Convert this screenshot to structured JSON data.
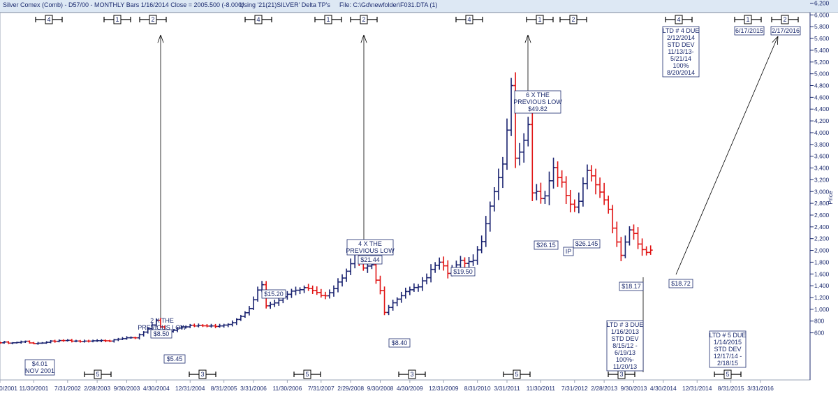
{
  "header": {
    "title": "Silver Comex (Comb) - D57/00  - MONTHLY Bars  1/16/2014 Close = 2005.500 (-8.000)",
    "using": "Using '21(21)SILVER' Delta TP's",
    "file": "File: C:\\Gd\\newfolder\\F031.DTA (1)"
  },
  "colors": {
    "up": "#1a2370",
    "down": "#e01414",
    "text": "#1b2a6e",
    "grid": "#9aa3b5"
  },
  "chart_data": {
    "type": "line",
    "ylabel": "Price",
    "ylim": [
      300,
      6400
    ],
    "y_ticks": [
      600,
      800,
      1000,
      1200,
      1400,
      1600,
      1800,
      2000,
      2200,
      2400,
      2600,
      2800,
      3000,
      3200,
      3400,
      3600,
      3800,
      4000,
      4200,
      4400,
      4600,
      4800,
      5000,
      5200,
      5400,
      5600,
      5800,
      6000,
      6200
    ],
    "y_tick_labels": [
      "600",
      "800",
      "1,000",
      "1,200",
      "1,400",
      "1,600",
      "1,800",
      "2,000",
      "2,200",
      "2,400",
      "2,600",
      "2,800",
      "3,000",
      "3,200",
      "3,400",
      "3,600",
      "3,800",
      "4,000",
      "4,200",
      "4,400",
      "4,600",
      "4,800",
      "5,000",
      "5,200",
      "5,400",
      "5,600",
      "5,800",
      "6,000",
      "6,200"
    ],
    "x_ticks": [
      "3/30/2001",
      "11/30/2001",
      "7/31/2002",
      "2/28/2003",
      "9/30/2003",
      "4/30/2004",
      "12/31/2004",
      "8/31/2005",
      "3/31/2006",
      "11/30/2006",
      "7/31/2007",
      "2/29/2008",
      "9/30/2008",
      "4/30/2009",
      "12/31/2009",
      "8/31/2010",
      "3/31/2011",
      "11/30/2011",
      "7/31/2012",
      "2/28/2013",
      "9/30/2013",
      "4/30/2014",
      "12/31/2014",
      "8/31/2015",
      "3/31/2016"
    ],
    "x_tick_labels": [
      "0/2001",
      "11/30/2001",
      "7/31/2002",
      "2/28/2003",
      "9/30/2003",
      "4/30/2004",
      "12/31/2004",
      "8/31/2005",
      "3/31/2006",
      "11/30/2006",
      "7/31/2007",
      "2/29/2008",
      "9/30/2008",
      "4/30/2009",
      "12/31/2009",
      "8/31/2010",
      "3/31/2011",
      "11/30/2011",
      "7/31/2012",
      "2/28/2013",
      "9/30/2013",
      "4/30/2014",
      "12/31/2014",
      "8/31/2015",
      "3/31/2016"
    ],
    "series": [
      {
        "values": [
          {
            "x": "2001-03",
            "y": 440
          },
          {
            "x": "2001-06",
            "y": 430
          },
          {
            "x": "2001-09",
            "y": 455
          },
          {
            "x": "2001-11",
            "y": 415
          },
          {
            "x": "2002-02",
            "y": 445
          },
          {
            "x": "2002-05",
            "y": 475
          },
          {
            "x": "2002-08",
            "y": 460
          },
          {
            "x": "2002-11",
            "y": 455
          },
          {
            "x": "2003-02",
            "y": 465
          },
          {
            "x": "2003-05",
            "y": 460
          },
          {
            "x": "2003-08",
            "y": 500
          },
          {
            "x": "2003-11",
            "y": 520
          },
          {
            "x": "2004-01",
            "y": 620
          },
          {
            "x": "2004-03",
            "y": 720
          },
          {
            "x": "2004-04",
            "y": 800
          },
          {
            "x": "2004-06",
            "y": 600
          },
          {
            "x": "2004-09",
            "y": 680
          },
          {
            "x": "2004-12",
            "y": 720
          },
          {
            "x": "2005-03",
            "y": 730
          },
          {
            "x": "2005-06",
            "y": 720
          },
          {
            "x": "2005-09",
            "y": 740
          },
          {
            "x": "2005-12",
            "y": 870
          },
          {
            "x": "2006-02",
            "y": 1000
          },
          {
            "x": "2006-04",
            "y": 1350
          },
          {
            "x": "2006-05",
            "y": 1400
          },
          {
            "x": "2006-06",
            "y": 1080
          },
          {
            "x": "2006-09",
            "y": 1150
          },
          {
            "x": "2006-12",
            "y": 1300
          },
          {
            "x": "2007-03",
            "y": 1350
          },
          {
            "x": "2007-06",
            "y": 1280
          },
          {
            "x": "2007-08",
            "y": 1220
          },
          {
            "x": "2007-11",
            "y": 1450
          },
          {
            "x": "2008-01",
            "y": 1620
          },
          {
            "x": "2008-03",
            "y": 1900
          },
          {
            "x": "2008-05",
            "y": 1700
          },
          {
            "x": "2008-07",
            "y": 1750
          },
          {
            "x": "2008-09",
            "y": 1300
          },
          {
            "x": "2008-10",
            "y": 960
          },
          {
            "x": "2008-12",
            "y": 1100
          },
          {
            "x": "2009-03",
            "y": 1280
          },
          {
            "x": "2009-06",
            "y": 1380
          },
          {
            "x": "2009-09",
            "y": 1650
          },
          {
            "x": "2009-11",
            "y": 1800
          },
          {
            "x": "2010-01",
            "y": 1620
          },
          {
            "x": "2010-04",
            "y": 1800
          },
          {
            "x": "2010-07",
            "y": 1800
          },
          {
            "x": "2010-09",
            "y": 2150
          },
          {
            "x": "2010-12",
            "y": 3050
          },
          {
            "x": "2011-02",
            "y": 3400
          },
          {
            "x": "2011-04",
            "y": 4750
          },
          {
            "x": "2011-05",
            "y": 3500
          },
          {
            "x": "2011-07",
            "y": 3950
          },
          {
            "x": "2011-08",
            "y": 4100
          },
          {
            "x": "2011-09",
            "y": 3000
          },
          {
            "x": "2011-12",
            "y": 2900
          },
          {
            "x": "2012-02",
            "y": 3450
          },
          {
            "x": "2012-04",
            "y": 3100
          },
          {
            "x": "2012-06",
            "y": 2750
          },
          {
            "x": "2012-08",
            "y": 2800
          },
          {
            "x": "2012-10",
            "y": 3400
          },
          {
            "x": "2012-12",
            "y": 3150
          },
          {
            "x": "2013-02",
            "y": 2900
          },
          {
            "x": "2013-04",
            "y": 2400
          },
          {
            "x": "2013-06",
            "y": 1950
          },
          {
            "x": "2013-08",
            "y": 2350
          },
          {
            "x": "2013-10",
            "y": 2150
          },
          {
            "x": "2013-12",
            "y": 1950
          },
          {
            "x": "2014-01",
            "y": 2005
          }
        ]
      }
    ],
    "annotations": [
      {
        "text": "$4.01",
        "x": "2001-11",
        "y": 415
      },
      {
        "text": "NOV 2001",
        "x": "2001-11",
        "y": 415
      },
      {
        "text": "2 X THE",
        "x": "2004-04",
        "y": 800
      },
      {
        "text": "PREVIOUS LOW",
        "x": "2004-04",
        "y": 800
      },
      {
        "text": "$8.50",
        "x": "2004-04",
        "y": 800
      },
      {
        "text": "$5.45",
        "x": "2004-06",
        "y": 600
      },
      {
        "text": "$15.20",
        "x": "2006-05",
        "y": 1400
      },
      {
        "text": "4 X  THE",
        "x": "2008-03",
        "y": 1900
      },
      {
        "text": "PREVIOUS LOW",
        "x": "2008-03",
        "y": 1900
      },
      {
        "text": "$21.44",
        "x": "2008-03",
        "y": 1900
      },
      {
        "text": "$8.40",
        "x": "2008-10",
        "y": 960
      },
      {
        "text": "$19.50",
        "x": "2009-11",
        "y": 1800
      },
      {
        "text": "6  X THE",
        "x": "2011-04",
        "y": 4750
      },
      {
        "text": "PREVIOUS LOW",
        "x": "2011-04",
        "y": 4750
      },
      {
        "text": "$49.82",
        "x": "2011-04",
        "y": 4750
      },
      {
        "text": "$26.15",
        "x": "2011-09",
        "y": 3000
      },
      {
        "text": "$26.145",
        "x": "2011-12",
        "y": 2900
      },
      {
        "text": "IP",
        "x": "2011-12",
        "y": 2900
      },
      {
        "text": "$18.17",
        "x": "2013-06",
        "y": 1950
      },
      {
        "text": "$18.72",
        "x": "2013-12",
        "y": 1950
      }
    ],
    "top_markers": [
      "4",
      "1",
      "2",
      "4",
      "1",
      "2",
      "4",
      "1",
      "2",
      "4",
      "1",
      "2"
    ],
    "bottom_markers": [
      "5",
      "3",
      "5",
      "3",
      "5",
      "3",
      "5"
    ],
    "date_boxes": [
      "6/17/2015",
      "2/17/2016"
    ],
    "ltd_boxes": [
      [
        "LTD # 4 DUE",
        "2/12/2014",
        "STD DEV",
        "11/13/13-",
        "5/21/14",
        "100%",
        "8/20/2014"
      ],
      [
        "LTD # 3 DUE",
        "1/16/2013",
        "STD DEV",
        "8/15/12 -",
        "6/19/13",
        "100%-",
        "11/20/13"
      ],
      [
        "LTD # 5 DUE",
        "1/14/2015",
        "STD DEV",
        "12/17/14 -",
        "2/18/15"
      ]
    ]
  }
}
